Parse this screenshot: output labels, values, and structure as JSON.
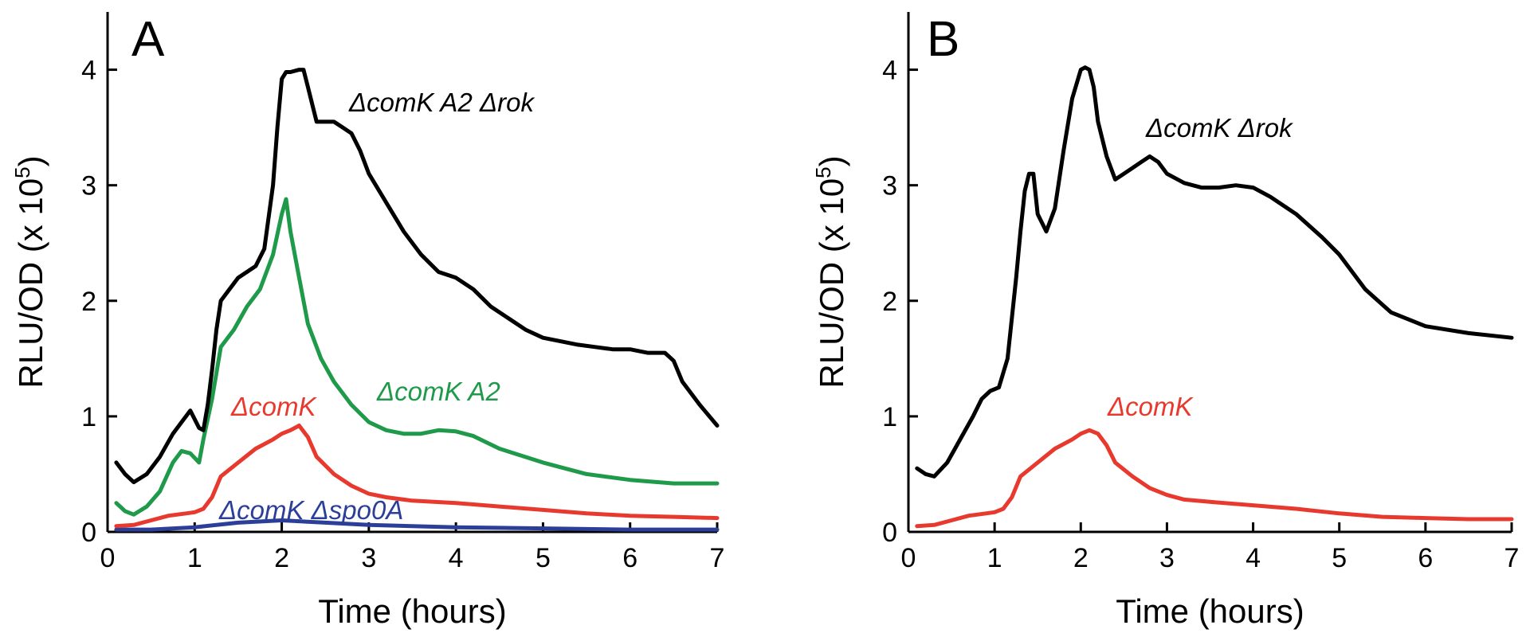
{
  "chart_data": [
    {
      "type": "line",
      "panel_label": "A",
      "xlabel": "Time (hours)",
      "ylabel": "RLU/OD (x 10",
      "ylabel_exp": "5",
      "ylabel_close": ")",
      "xlim": [
        0,
        7
      ],
      "ylim": [
        0,
        4.5
      ],
      "x_ticks": [
        0,
        1,
        2,
        3,
        4,
        5,
        6,
        7
      ],
      "y_ticks": [
        0,
        1,
        2,
        3,
        4
      ],
      "grid": false,
      "series": [
        {
          "name": "ΔcomK A2 Δrok",
          "color": "#000000",
          "x": [
            0.1,
            0.2,
            0.3,
            0.45,
            0.6,
            0.75,
            0.85,
            0.95,
            1.05,
            1.1,
            1.15,
            1.2,
            1.25,
            1.3,
            1.4,
            1.5,
            1.6,
            1.7,
            1.8,
            1.9,
            1.95,
            2.0,
            2.05,
            2.1,
            2.2,
            2.25,
            2.3,
            2.4,
            2.5,
            2.6,
            2.7,
            2.8,
            2.9,
            3.0,
            3.2,
            3.4,
            3.6,
            3.8,
            4.0,
            4.2,
            4.4,
            4.6,
            4.8,
            5.0,
            5.2,
            5.4,
            5.6,
            5.8,
            6.0,
            6.2,
            6.4,
            6.5,
            6.6,
            6.8,
            7.0
          ],
          "y": [
            0.6,
            0.5,
            0.43,
            0.5,
            0.65,
            0.85,
            0.95,
            1.05,
            0.9,
            0.88,
            1.1,
            1.4,
            1.75,
            2.0,
            2.1,
            2.2,
            2.25,
            2.3,
            2.45,
            3.0,
            3.5,
            3.92,
            3.98,
            3.98,
            4.0,
            4.0,
            3.85,
            3.55,
            3.55,
            3.55,
            3.5,
            3.45,
            3.3,
            3.1,
            2.85,
            2.6,
            2.4,
            2.25,
            2.2,
            2.1,
            1.95,
            1.85,
            1.75,
            1.68,
            1.65,
            1.62,
            1.6,
            1.58,
            1.58,
            1.55,
            1.55,
            1.48,
            1.3,
            1.1,
            0.92
          ]
        },
        {
          "name": "ΔcomK A2",
          "color": "#1e9a4a",
          "x": [
            0.1,
            0.2,
            0.3,
            0.45,
            0.6,
            0.75,
            0.85,
            0.95,
            1.05,
            1.1,
            1.2,
            1.3,
            1.45,
            1.6,
            1.75,
            1.9,
            2.0,
            2.05,
            2.1,
            2.2,
            2.3,
            2.45,
            2.6,
            2.8,
            3.0,
            3.2,
            3.4,
            3.6,
            3.8,
            4.0,
            4.2,
            4.5,
            5.0,
            5.5,
            6.0,
            6.5,
            7.0
          ],
          "y": [
            0.25,
            0.18,
            0.15,
            0.22,
            0.35,
            0.6,
            0.7,
            0.68,
            0.6,
            0.8,
            1.15,
            1.6,
            1.75,
            1.95,
            2.1,
            2.4,
            2.75,
            2.88,
            2.6,
            2.2,
            1.8,
            1.5,
            1.3,
            1.1,
            0.95,
            0.88,
            0.85,
            0.85,
            0.88,
            0.87,
            0.83,
            0.72,
            0.6,
            0.5,
            0.45,
            0.42,
            0.42
          ]
        },
        {
          "name": "ΔcomK",
          "color": "#e8392e",
          "x": [
            0.1,
            0.3,
            0.5,
            0.7,
            0.9,
            1.0,
            1.1,
            1.2,
            1.3,
            1.5,
            1.7,
            1.9,
            2.0,
            2.1,
            2.2,
            2.3,
            2.4,
            2.6,
            2.8,
            3.0,
            3.2,
            3.5,
            4.0,
            4.5,
            5.0,
            5.5,
            6.0,
            6.5,
            7.0
          ],
          "y": [
            0.05,
            0.06,
            0.1,
            0.14,
            0.16,
            0.17,
            0.2,
            0.3,
            0.48,
            0.6,
            0.72,
            0.8,
            0.85,
            0.88,
            0.92,
            0.82,
            0.65,
            0.5,
            0.4,
            0.33,
            0.3,
            0.27,
            0.25,
            0.22,
            0.19,
            0.16,
            0.14,
            0.13,
            0.12
          ]
        },
        {
          "name": "ΔcomK Δspo0A",
          "color": "#2b3f99",
          "x": [
            0.1,
            0.5,
            1.0,
            1.5,
            2.0,
            2.5,
            3.0,
            4.0,
            5.0,
            6.0,
            7.0
          ],
          "y": [
            0.02,
            0.02,
            0.04,
            0.08,
            0.1,
            0.08,
            0.06,
            0.04,
            0.03,
            0.02,
            0.02
          ]
        }
      ]
    },
    {
      "type": "line",
      "panel_label": "B",
      "xlabel": "Time (hours)",
      "ylabel": "RLU/OD (x 10",
      "ylabel_exp": "5",
      "ylabel_close": ")",
      "xlim": [
        0,
        7
      ],
      "ylim": [
        0,
        4.5
      ],
      "x_ticks": [
        0,
        1,
        2,
        3,
        4,
        5,
        6,
        7
      ],
      "y_ticks": [
        0,
        1,
        2,
        3,
        4
      ],
      "grid": false,
      "series": [
        {
          "name": "ΔcomK Δrok",
          "color": "#000000",
          "x": [
            0.1,
            0.2,
            0.3,
            0.45,
            0.6,
            0.75,
            0.85,
            0.95,
            1.05,
            1.15,
            1.25,
            1.3,
            1.35,
            1.4,
            1.45,
            1.5,
            1.6,
            1.7,
            1.8,
            1.9,
            2.0,
            2.05,
            2.1,
            2.15,
            2.2,
            2.3,
            2.4,
            2.5,
            2.6,
            2.7,
            2.8,
            2.9,
            3.0,
            3.2,
            3.4,
            3.6,
            3.8,
            4.0,
            4.2,
            4.5,
            4.8,
            5.0,
            5.3,
            5.6,
            6.0,
            6.5,
            7.0
          ],
          "y": [
            0.55,
            0.5,
            0.48,
            0.6,
            0.8,
            1.0,
            1.15,
            1.22,
            1.25,
            1.5,
            2.2,
            2.6,
            2.95,
            3.1,
            3.1,
            2.75,
            2.6,
            2.8,
            3.3,
            3.75,
            4.0,
            4.02,
            4.0,
            3.85,
            3.55,
            3.25,
            3.05,
            3.1,
            3.15,
            3.2,
            3.25,
            3.2,
            3.1,
            3.02,
            2.98,
            2.98,
            3.0,
            2.98,
            2.9,
            2.75,
            2.55,
            2.4,
            2.1,
            1.9,
            1.78,
            1.72,
            1.68
          ]
        },
        {
          "name": "ΔcomK",
          "color": "#e8392e",
          "x": [
            0.1,
            0.3,
            0.5,
            0.7,
            0.9,
            1.0,
            1.1,
            1.2,
            1.3,
            1.5,
            1.7,
            1.9,
            2.0,
            2.1,
            2.2,
            2.3,
            2.4,
            2.6,
            2.8,
            3.0,
            3.2,
            3.5,
            4.0,
            4.5,
            5.0,
            5.5,
            6.0,
            6.5,
            7.0
          ],
          "y": [
            0.05,
            0.06,
            0.1,
            0.14,
            0.16,
            0.17,
            0.2,
            0.3,
            0.48,
            0.6,
            0.72,
            0.8,
            0.85,
            0.88,
            0.85,
            0.75,
            0.6,
            0.48,
            0.38,
            0.32,
            0.28,
            0.26,
            0.23,
            0.2,
            0.16,
            0.13,
            0.12,
            0.11,
            0.11
          ]
        }
      ]
    }
  ]
}
